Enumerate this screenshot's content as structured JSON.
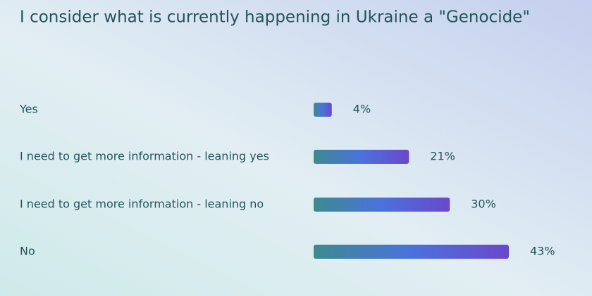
{
  "chart_data": {
    "type": "bar",
    "orientation": "horizontal",
    "title": "I consider what is currently happening in Ukraine a \"Genocide\"",
    "categories": [
      "Yes",
      "I need to get more information - leaning yes",
      "I need to get more information - leaning no",
      "No"
    ],
    "values": [
      4,
      21,
      30,
      43
    ],
    "value_labels": [
      "4%",
      "21%",
      "30%",
      "43%"
    ],
    "colors": [
      "#3d8a90",
      "#4a72dc",
      "#6a48cc"
    ]
  }
}
